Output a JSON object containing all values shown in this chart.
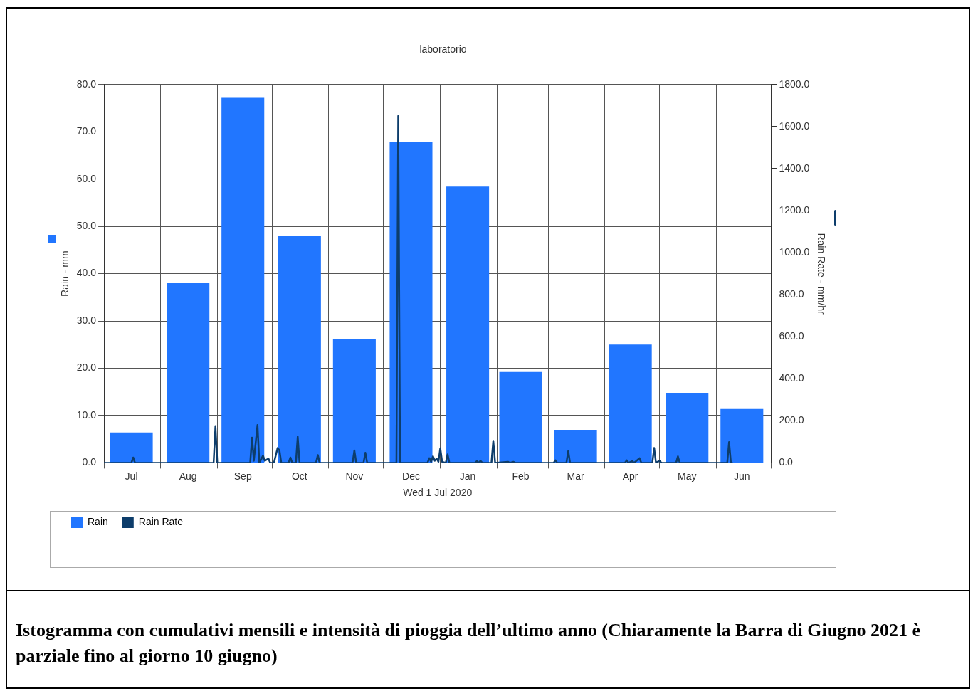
{
  "chart_data": {
    "type": "bar",
    "title": "laboratorio",
    "xlabel": "Wed 1 Jul 2020",
    "ylabel": "Rain - mm",
    "y2label": "Rain Rate - mm/hr",
    "x": [
      "2020-07-16",
      "2020-08-16",
      "2020-09-15",
      "2020-10-16",
      "2020-11-15",
      "2020-12-16",
      "2021-01-16",
      "2021-02-14",
      "2021-03-16",
      "2021-04-15",
      "2021-05-16",
      "2021-06-15"
    ],
    "series": [
      {
        "name": "Rain",
        "color": "#2176ff",
        "values": [
          6.4,
          38.1,
          77.2,
          48.0,
          26.2,
          67.8,
          58.4,
          19.2,
          7.0,
          25.0,
          14.8,
          11.4
        ]
      },
      {
        "name": "Rain Rate",
        "type": "line",
        "axis": "y2",
        "color": "#0d3d6b",
        "x": [
          "2020-07-01",
          "2020-07-16",
          "2020-07-17",
          "2020-07-18",
          "2020-08-30",
          "2020-08-31",
          "2020-09-01",
          "2020-09-19",
          "2020-09-20",
          "2020-09-21",
          "2020-09-23",
          "2020-09-24",
          "2020-09-26",
          "2020-09-27",
          "2020-09-29",
          "2020-09-30",
          "2020-10-02",
          "2020-10-04",
          "2020-10-05",
          "2020-10-06",
          "2020-10-10",
          "2020-10-11",
          "2020-10-12",
          "2020-10-14",
          "2020-10-15",
          "2020-10-16",
          "2020-10-25",
          "2020-10-26",
          "2020-10-27",
          "2020-11-14",
          "2020-11-15",
          "2020-11-16",
          "2020-11-20",
          "2020-11-21",
          "2020-11-22",
          "2020-12-08",
          "2020-12-09",
          "2020-12-10",
          "2020-12-25",
          "2020-12-26",
          "2020-12-27",
          "2020-12-28",
          "2020-12-29",
          "2020-12-30",
          "2020-12-31",
          "2021-01-01",
          "2021-01-02",
          "2021-01-04",
          "2021-01-05",
          "2021-01-06",
          "2021-01-20",
          "2021-01-21",
          "2021-01-22",
          "2021-01-23",
          "2021-01-24",
          "2021-01-29",
          "2021-01-30",
          "2021-01-31",
          "2021-02-07",
          "2021-02-08",
          "2021-02-10",
          "2021-02-11",
          "2021-03-04",
          "2021-03-05",
          "2021-03-06",
          "2021-03-11",
          "2021-03-12",
          "2021-03-13",
          "2021-04-12",
          "2021-04-13",
          "2021-04-14",
          "2021-04-16",
          "2021-04-17",
          "2021-04-20",
          "2021-04-21",
          "2021-04-27",
          "2021-04-28",
          "2021-04-29",
          "2021-05-01",
          "2021-05-02",
          "2021-05-10",
          "2021-05-11",
          "2021-05-12",
          "2021-06-07",
          "2021-06-08",
          "2021-06-09",
          "2021-06-10"
        ],
        "values": [
          0,
          0,
          25,
          0,
          0,
          175,
          0,
          0,
          120,
          10,
          180,
          0,
          34,
          10,
          20,
          0,
          0,
          71,
          60,
          0,
          0,
          25,
          0,
          0,
          125,
          0,
          0,
          37,
          0,
          0,
          59,
          0,
          0,
          48,
          0,
          0,
          1650,
          0,
          0,
          22,
          5,
          31,
          10,
          20,
          5,
          69,
          5,
          0,
          40,
          0,
          0,
          8,
          0,
          10,
          0,
          0,
          105,
          0,
          5,
          0,
          5,
          0,
          0,
          12,
          0,
          0,
          56,
          0,
          0,
          12,
          0,
          8,
          0,
          22,
          0,
          0,
          71,
          0,
          10,
          0,
          0,
          31,
          0,
          0,
          99,
          0,
          0
        ]
      }
    ],
    "xlim": [
      "2020-07-01",
      "2021-07-01"
    ],
    "xticks": [
      {
        "value": "2020-07-01",
        "label": null
      },
      {
        "value": "2020-07-16",
        "label": "Jul"
      },
      {
        "value": "2020-08-01",
        "label": null
      },
      {
        "value": "2020-08-16",
        "label": "Aug"
      },
      {
        "value": "2020-09-01",
        "label": null
      },
      {
        "value": "2020-09-15",
        "label": "Sep"
      },
      {
        "value": "2020-10-01",
        "label": null
      },
      {
        "value": "2020-10-16",
        "label": "Oct"
      },
      {
        "value": "2020-11-01",
        "label": null
      },
      {
        "value": "2020-11-15",
        "label": "Nov"
      },
      {
        "value": "2020-12-01",
        "label": null
      },
      {
        "value": "2020-12-16",
        "label": "Dec"
      },
      {
        "value": "2021-01-01",
        "label": null
      },
      {
        "value": "2021-01-16",
        "label": "Jan"
      },
      {
        "value": "2021-02-01",
        "label": null
      },
      {
        "value": "2021-02-14",
        "label": "Feb"
      },
      {
        "value": "2021-03-01",
        "label": null
      },
      {
        "value": "2021-03-16",
        "label": "Mar"
      },
      {
        "value": "2021-04-01",
        "label": null
      },
      {
        "value": "2021-04-15",
        "label": "Apr"
      },
      {
        "value": "2021-05-01",
        "label": null
      },
      {
        "value": "2021-05-16",
        "label": "May"
      },
      {
        "value": "2021-06-01",
        "label": null
      },
      {
        "value": "2021-06-15",
        "label": "Jun"
      },
      {
        "value": "2021-07-01",
        "label": null
      }
    ],
    "ylim": [
      0,
      80
    ],
    "yticks": [
      {
        "value": 0,
        "label": "0.0"
      },
      {
        "value": 10,
        "label": "10.0"
      },
      {
        "value": 20,
        "label": "20.0"
      },
      {
        "value": 30,
        "label": "30.0"
      },
      {
        "value": 40,
        "label": "40.0"
      },
      {
        "value": 50,
        "label": "50.0"
      },
      {
        "value": 60,
        "label": "60.0"
      },
      {
        "value": 70,
        "label": "70.0"
      },
      {
        "value": 80,
        "label": "80.0"
      }
    ],
    "y2lim": [
      0,
      1800
    ],
    "y2ticks": [
      {
        "value": 0,
        "label": "0.0"
      },
      {
        "value": 200,
        "label": "200.0"
      },
      {
        "value": 400,
        "label": "400.0"
      },
      {
        "value": 600,
        "label": "600.0"
      },
      {
        "value": 800,
        "label": "800.0"
      },
      {
        "value": 1000,
        "label": "1000.0"
      },
      {
        "value": 1200,
        "label": "1200.0"
      },
      {
        "value": 1400,
        "label": "1400.0"
      },
      {
        "value": 1600,
        "label": "1600.0"
      },
      {
        "value": 1800,
        "label": "1800.0"
      }
    ],
    "grid": true,
    "legend": "bottom",
    "annotations": [
      "Istogramma con cumulativi mensili e intensità di pioggia dell’ultimo anno (Chiaramente la Barra di Giugno 2021 è parziale fino al giorno 10 giugno)"
    ]
  }
}
